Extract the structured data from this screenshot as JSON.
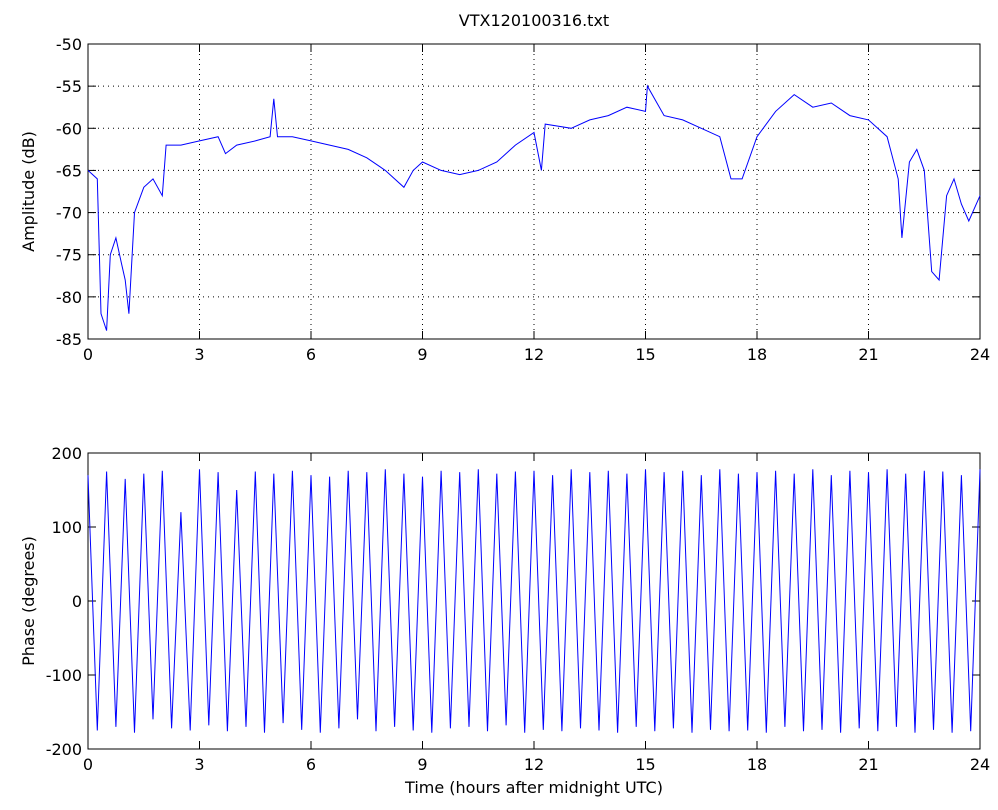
{
  "chart_data": [
    {
      "type": "line",
      "title": "VTX120100316.txt",
      "y_label": "Amplitude (dB)",
      "grid": true,
      "xlim": [
        0,
        24
      ],
      "xticks": [
        0,
        3,
        6,
        9,
        12,
        15,
        18,
        21,
        24
      ],
      "ylim": [
        -85,
        -50
      ],
      "yticks": [
        -85,
        -80,
        -75,
        -70,
        -65,
        -60,
        -55,
        -50
      ],
      "x": [
        0,
        0.25,
        0.35,
        0.5,
        0.6,
        0.75,
        0.9,
        1.0,
        1.1,
        1.25,
        1.5,
        1.75,
        2.0,
        2.1,
        2.5,
        3.0,
        3.5,
        3.7,
        4.0,
        4.5,
        4.9,
        5.0,
        5.1,
        5.5,
        6.0,
        6.5,
        7.0,
        7.5,
        8.0,
        8.5,
        8.75,
        9.0,
        9.5,
        10.0,
        10.5,
        11.0,
        11.5,
        12.0,
        12.2,
        12.3,
        13.0,
        13.5,
        14.0,
        14.5,
        15.0,
        15.05,
        15.5,
        16.0,
        16.5,
        17.0,
        17.3,
        17.6,
        18.0,
        18.5,
        19.0,
        19.5,
        20.0,
        20.5,
        21.0,
        21.5,
        21.8,
        21.9,
        22.1,
        22.3,
        22.5,
        22.7,
        22.9,
        23.1,
        23.3,
        23.5,
        23.7,
        24.0
      ],
      "series": [
        {
          "name": "amplitude",
          "color": "#0000ff",
          "values": [
            -65,
            -66,
            -82,
            -84,
            -75,
            -73,
            -76,
            -78,
            -82,
            -70,
            -67,
            -66,
            -68,
            -62,
            -62,
            -61.5,
            -61,
            -63,
            -62,
            -61.5,
            -61,
            -56.5,
            -61,
            -61,
            -61.5,
            -62,
            -62.5,
            -63.5,
            -65,
            -67,
            -65,
            -64,
            -65,
            -65.5,
            -65,
            -64,
            -62,
            -60.5,
            -65,
            -59.5,
            -60,
            -59,
            -58.5,
            -57.5,
            -58,
            -55,
            -58.5,
            -59,
            -60,
            -61,
            -66,
            -66,
            -61,
            -58,
            -56,
            -57.5,
            -57,
            -58.5,
            -59,
            -61,
            -66,
            -73,
            -64,
            -62.5,
            -65,
            -77,
            -78,
            -68,
            -66,
            -69,
            -71,
            -68
          ]
        }
      ]
    },
    {
      "type": "line",
      "y_label": "Phase (degrees)",
      "x_label": "Time (hours after midnight UTC)",
      "grid": false,
      "xlim": [
        0,
        24
      ],
      "xticks": [
        0,
        3,
        6,
        9,
        12,
        15,
        18,
        21,
        24
      ],
      "ylim": [
        -200,
        200
      ],
      "yticks": [
        -200,
        -100,
        0,
        100,
        200
      ],
      "x": [
        0,
        0.25,
        0.5,
        0.75,
        1,
        1.25,
        1.5,
        1.75,
        2,
        2.25,
        2.5,
        2.75,
        3,
        3.25,
        3.5,
        3.75,
        4,
        4.25,
        4.5,
        4.75,
        5,
        5.25,
        5.5,
        5.75,
        6,
        6.25,
        6.5,
        6.75,
        7,
        7.25,
        7.5,
        7.75,
        8,
        8.25,
        8.5,
        8.75,
        9,
        9.25,
        9.5,
        9.75,
        10,
        10.25,
        10.5,
        10.75,
        11,
        11.25,
        11.5,
        11.75,
        12,
        12.25,
        12.5,
        12.75,
        13,
        13.25,
        13.5,
        13.75,
        14,
        14.25,
        14.5,
        14.75,
        15,
        15.25,
        15.5,
        15.75,
        16,
        16.25,
        16.5,
        16.75,
        17,
        17.25,
        17.5,
        17.75,
        18,
        18.25,
        18.5,
        18.75,
        19,
        19.25,
        19.5,
        19.75,
        20,
        20.25,
        20.5,
        20.75,
        21,
        21.25,
        21.5,
        21.75,
        22,
        22.25,
        22.5,
        22.75,
        23,
        23.25,
        23.5,
        23.75,
        24
      ],
      "series": [
        {
          "name": "phase",
          "color": "#0000ff",
          "values": [
            170,
            -175,
            175,
            -170,
            165,
            -178,
            172,
            -160,
            176,
            -172,
            120,
            -175,
            178,
            -168,
            174,
            -176,
            150,
            -170,
            175,
            -178,
            172,
            -165,
            176,
            -174,
            170,
            -178,
            168,
            -172,
            176,
            -160,
            174,
            -176,
            178,
            -170,
            172,
            -175,
            168,
            -178,
            176,
            -172,
            174,
            -170,
            178,
            -176,
            172,
            -168,
            175,
            -178,
            176,
            -174,
            170,
            -176,
            178,
            -172,
            174,
            -175,
            176,
            -178,
            172,
            -170,
            178,
            -176,
            174,
            -172,
            176,
            -178,
            170,
            -174,
            178,
            -176,
            172,
            -175,
            174,
            -178,
            176,
            -170,
            172,
            -176,
            178,
            -174,
            170,
            -178,
            176,
            -172,
            174,
            -176,
            178,
            -170,
            172,
            -178,
            176,
            -174,
            175,
            -178,
            170,
            -176,
            178
          ]
        }
      ]
    }
  ]
}
